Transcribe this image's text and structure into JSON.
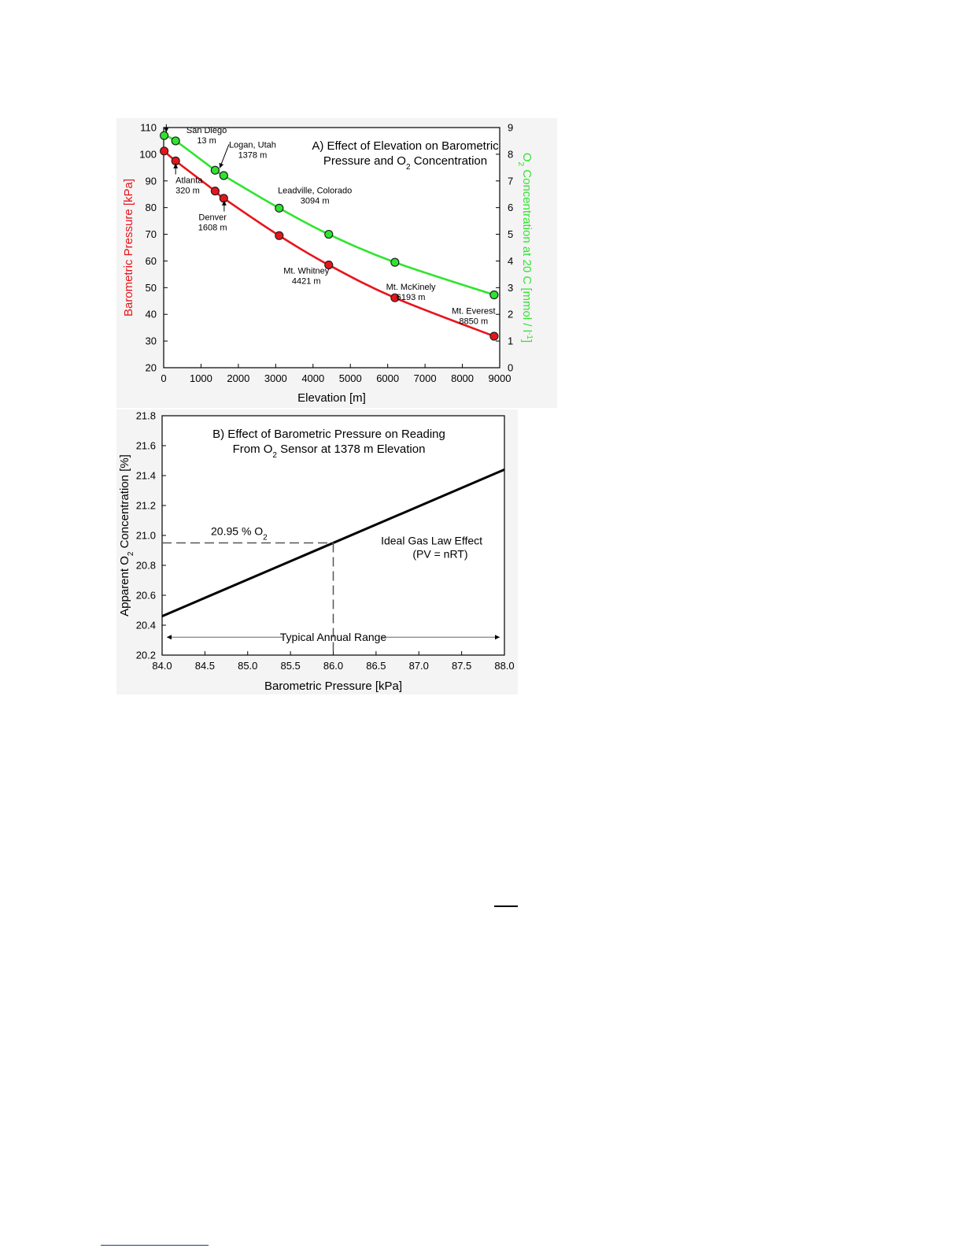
{
  "chart_data": [
    {
      "type": "line",
      "title_lines": [
        [
          "A) Effect of Elevation on Barometric"
        ],
        [
          "Pressure and O",
          {
            "sub": "2"
          },
          " Concentration"
        ]
      ],
      "xlabel": "Elevation [m]",
      "ylabel": "Barometric Pressure [kPa]",
      "y2label_parts": [
        "O",
        {
          "sub": "2"
        },
        " Concentration at 20 C [mmol / l",
        {
          "sup": "-1"
        },
        "]"
      ],
      "xlim": [
        0,
        9000
      ],
      "xticks": [
        0,
        1000,
        2000,
        3000,
        4000,
        5000,
        6000,
        7000,
        8000,
        9000
      ],
      "ylim": [
        20,
        110
      ],
      "yticks": [
        20,
        30,
        40,
        50,
        60,
        70,
        80,
        90,
        100,
        110
      ],
      "y2lim": [
        0,
        9
      ],
      "y2ticks": [
        0,
        1,
        2,
        3,
        4,
        5,
        6,
        7,
        8,
        9
      ],
      "colors": {
        "pressure": "#e8141c",
        "oxygen": "#2fe42f",
        "marker_edge": "#222222"
      },
      "series": [
        {
          "axis": "left",
          "color_key": "pressure",
          "x": [
            13,
            320,
            1378,
            1608,
            3094,
            4421,
            6193,
            8850
          ],
          "y": [
            101.2,
            97.5,
            86.2,
            83.5,
            69.5,
            58.5,
            46.2,
            31.8
          ]
        },
        {
          "axis": "right",
          "color_key": "oxygen",
          "x": [
            13,
            320,
            1378,
            1608,
            3094,
            4421,
            6193,
            8850
          ],
          "y": [
            8.7,
            8.5,
            7.4,
            7.2,
            5.98,
            5.0,
            3.95,
            2.73
          ]
        }
      ],
      "annotations": [
        {
          "lines": [
            "San Diego",
            "13 m"
          ],
          "x": 1150,
          "y": 108,
          "anchor": "middle",
          "arrow_to": [
            70,
            108.2
          ]
        },
        {
          "lines": [
            "Logan, Utah",
            "1378 m"
          ],
          "x": 2380,
          "y": 102.5,
          "anchor": "middle",
          "arrow_to": [
            1500,
            94.8
          ]
        },
        {
          "lines": [
            "Atlanta",
            "320 m"
          ],
          "x": 320,
          "y": 89.2,
          "anchor": "start",
          "arrow_to": [
            320,
            96.5
          ]
        },
        {
          "lines": [
            "Denver",
            "1608 m"
          ],
          "x": 1310,
          "y": 75.3,
          "anchor": "middle",
          "arrow_to": [
            1620,
            82.6
          ]
        },
        {
          "lines": [
            "Leadville, Colorado",
            "3094 m"
          ],
          "x": 4050,
          "y": 85.3,
          "anchor": "middle"
        },
        {
          "lines": [
            "Mt. Whitney",
            "4421 m"
          ],
          "x": 3820,
          "y": 55.2,
          "anchor": "middle"
        },
        {
          "lines": [
            "Mt. McKinely",
            "6193 m"
          ],
          "x": 6620,
          "y": 49.2,
          "anchor": "middle"
        },
        {
          "lines": [
            "Mt. Everest",
            "8850 m"
          ],
          "x": 8300,
          "y": 40.2,
          "anchor": "middle"
        }
      ]
    },
    {
      "type": "line",
      "title_lines": [
        [
          "B) Effect of Barometric Pressure on Reading"
        ],
        [
          "From O",
          {
            "sub": "2"
          },
          " Sensor at 1378 m Elevation"
        ]
      ],
      "xlabel": "Barometric Pressure [kPa]",
      "ylabel_parts": [
        "Apparent O",
        {
          "sub": "2"
        },
        " Concentration [%]"
      ],
      "xlim": [
        84.0,
        88.0
      ],
      "xticks": [
        "84.0",
        "84.5",
        "85.0",
        "85.5",
        "86.0",
        "86.5",
        "87.0",
        "87.5",
        "88.0"
      ],
      "ylim": [
        20.2,
        21.8
      ],
      "yticks": [
        "20.2",
        "20.4",
        "20.6",
        "20.8",
        "21.0",
        "21.2",
        "21.4",
        "21.6",
        "21.8"
      ],
      "series": [
        {
          "x": [
            84.0,
            88.0
          ],
          "y": [
            20.46,
            21.44
          ]
        }
      ],
      "reference": {
        "x": 86.0,
        "y": 20.95,
        "label_parts": [
          "20.95 % O",
          {
            "sub": "2"
          }
        ]
      },
      "line_label": [
        "Ideal Gas Law Effect",
        "(PV = nRT)"
      ],
      "range_label": "Typical Annual Range"
    }
  ]
}
